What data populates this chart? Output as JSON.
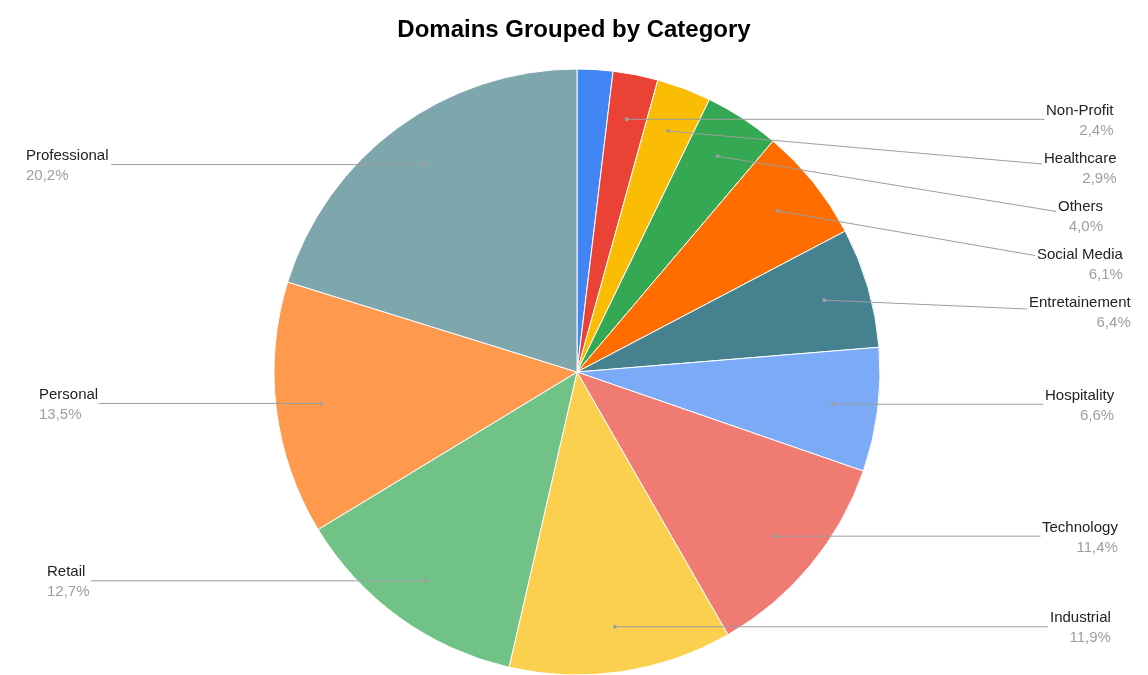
{
  "chart_data": {
    "type": "pie",
    "title": "Domains Grouped by Category",
    "categories": [
      null,
      "Non-Profit",
      "Healthcare",
      "Others",
      "Social Media",
      "Entretainement",
      "Hospitality",
      "Technology",
      "Industrial",
      "Retail",
      "Personal",
      "Professional"
    ],
    "values": [
      1.9,
      2.4,
      2.9,
      4.0,
      6.1,
      6.4,
      6.6,
      11.4,
      11.9,
      12.7,
      13.5,
      20.2
    ],
    "value_labels": [
      null,
      "2,4%",
      "2,9%",
      "4,0%",
      "6,1%",
      "6,4%",
      "6,6%",
      "11,4%",
      "11,9%",
      "12,7%",
      "13,5%",
      "20,2%"
    ],
    "colors": [
      "#4285f4",
      "#ea4335",
      "#fbbc04",
      "#34a853",
      "#ff6d01",
      "#46818f",
      "#7baaf7",
      "#f07b72",
      "#fcd04f",
      "#71c287",
      "#ff994d",
      "#7ea6ad"
    ],
    "legend": false
  }
}
